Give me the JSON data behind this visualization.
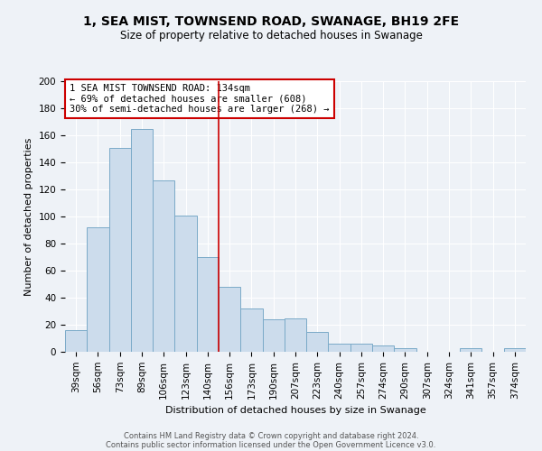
{
  "title": "1, SEA MIST, TOWNSEND ROAD, SWANAGE, BH19 2FE",
  "subtitle": "Size of property relative to detached houses in Swanage",
  "xlabel": "Distribution of detached houses by size in Swanage",
  "ylabel": "Number of detached properties",
  "bar_labels": [
    "39sqm",
    "56sqm",
    "73sqm",
    "89sqm",
    "106sqm",
    "123sqm",
    "140sqm",
    "156sqm",
    "173sqm",
    "190sqm",
    "207sqm",
    "223sqm",
    "240sqm",
    "257sqm",
    "274sqm",
    "290sqm",
    "307sqm",
    "324sqm",
    "341sqm",
    "357sqm",
    "374sqm"
  ],
  "bar_values": [
    16,
    92,
    151,
    165,
    127,
    101,
    70,
    48,
    32,
    24,
    25,
    15,
    6,
    6,
    5,
    3,
    0,
    0,
    3,
    0,
    3
  ],
  "bar_color": "#ccdcec",
  "bar_edge_color": "#7aaac8",
  "vline_color": "#cc0000",
  "vline_pos": 6.5,
  "annotation_text": "1 SEA MIST TOWNSEND ROAD: 134sqm\n← 69% of detached houses are smaller (608)\n30% of semi-detached houses are larger (268) →",
  "annotation_box_color": "#ffffff",
  "annotation_box_edge": "#cc0000",
  "ylim": [
    0,
    200
  ],
  "yticks": [
    0,
    20,
    40,
    60,
    80,
    100,
    120,
    140,
    160,
    180,
    200
  ],
  "footer1": "Contains HM Land Registry data © Crown copyright and database right 2024.",
  "footer2": "Contains public sector information licensed under the Open Government Licence v3.0.",
  "bg_color": "#eef2f7",
  "plot_bg_color": "#eef2f7",
  "title_fontsize": 10,
  "subtitle_fontsize": 8.5,
  "xlabel_fontsize": 8,
  "ylabel_fontsize": 8,
  "tick_fontsize": 7.5,
  "footer_fontsize": 6
}
